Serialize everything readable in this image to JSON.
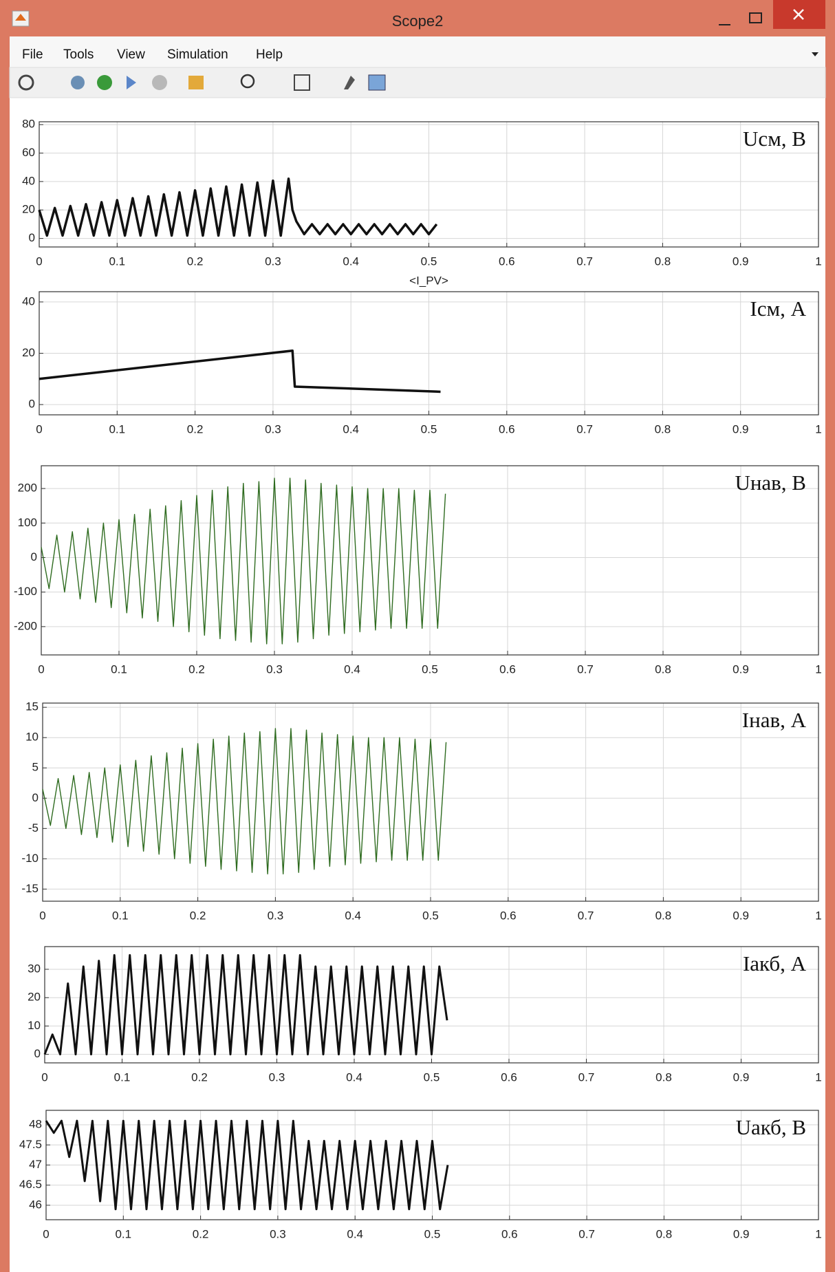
{
  "window": {
    "title": "Scope2",
    "menu": [
      "File",
      "Tools",
      "View",
      "Simulation",
      "Help"
    ]
  },
  "chart_data": [
    {
      "type": "line",
      "annotation": "Uсм, В",
      "color": "#111111",
      "grid": true,
      "xlim": [
        0,
        1
      ],
      "xticks": [
        0,
        0.1,
        0.2,
        0.3,
        0.4,
        0.5,
        0.6,
        0.7,
        0.8,
        0.9,
        1
      ],
      "ylim": [
        -6,
        82
      ],
      "yticks": [
        0,
        20,
        40,
        60,
        80
      ],
      "x": [
        0,
        0.01,
        0.02,
        0.03,
        0.04,
        0.05,
        0.06,
        0.07,
        0.08,
        0.09,
        0.1,
        0.11,
        0.12,
        0.13,
        0.14,
        0.15,
        0.16,
        0.17,
        0.18,
        0.19,
        0.2,
        0.21,
        0.22,
        0.23,
        0.24,
        0.25,
        0.26,
        0.27,
        0.28,
        0.29,
        0.3,
        0.31,
        0.32,
        0.325,
        0.33,
        0.34,
        0.35,
        0.36,
        0.37,
        0.38,
        0.39,
        0.4,
        0.41,
        0.42,
        0.43,
        0.44,
        0.45,
        0.46,
        0.47,
        0.48,
        0.49,
        0.5,
        0.51
      ],
      "values": [
        20,
        2,
        21.4,
        2,
        22.8,
        2,
        24.1,
        2,
        25.5,
        2,
        26.9,
        2,
        28.3,
        2,
        29.6,
        2,
        31,
        2,
        32.4,
        2,
        33.8,
        2,
        35.1,
        2,
        36.5,
        2,
        37.9,
        2,
        39.3,
        2,
        40.6,
        2,
        42,
        20,
        12,
        3,
        10,
        3,
        10,
        3,
        10,
        3,
        10,
        3,
        10,
        3,
        10,
        3,
        10,
        3,
        10,
        3,
        10
      ]
    },
    {
      "type": "line",
      "title": "<I_PV>",
      "annotation": "Iсм, А",
      "color": "#111111",
      "grid": true,
      "xlim": [
        0,
        1
      ],
      "xticks": [
        0,
        0.1,
        0.2,
        0.3,
        0.4,
        0.5,
        0.6,
        0.7,
        0.8,
        0.9,
        1
      ],
      "ylim": [
        -4,
        44
      ],
      "yticks": [
        0,
        20,
        40
      ],
      "x": [
        0,
        0.325,
        0.328,
        0.515
      ],
      "values": [
        10,
        21,
        7,
        5
      ]
    },
    {
      "type": "line",
      "annotation": "Uнав, В",
      "color": "#2e6b1f",
      "grid": true,
      "xlim": [
        0,
        1
      ],
      "xticks": [
        0,
        0.1,
        0.2,
        0.3,
        0.4,
        0.5,
        0.6,
        0.7,
        0.8,
        0.9,
        1
      ],
      "ylim": [
        -282,
        266
      ],
      "yticks": [
        -200,
        -100,
        0,
        100,
        200
      ],
      "x": [
        0,
        0.01,
        0.02,
        0.03,
        0.04,
        0.05,
        0.06,
        0.07,
        0.08,
        0.09,
        0.1,
        0.11,
        0.12,
        0.13,
        0.14,
        0.15,
        0.16,
        0.17,
        0.18,
        0.19,
        0.2,
        0.21,
        0.22,
        0.23,
        0.24,
        0.25,
        0.26,
        0.27,
        0.28,
        0.29,
        0.3,
        0.31,
        0.32,
        0.33,
        0.34,
        0.35,
        0.36,
        0.37,
        0.38,
        0.39,
        0.4,
        0.41,
        0.42,
        0.43,
        0.44,
        0.45,
        0.46,
        0.47,
        0.48,
        0.49,
        0.5,
        0.51,
        0.52
      ],
      "values": [
        30,
        -90,
        65,
        -100,
        75,
        -120,
        85,
        -130,
        100,
        -145,
        110,
        -160,
        125,
        -175,
        140,
        -185,
        150,
        -200,
        165,
        -215,
        180,
        -225,
        195,
        -235,
        205,
        -240,
        215,
        -245,
        220,
        -250,
        230,
        -250,
        230,
        -245,
        225,
        -235,
        215,
        -225,
        210,
        -220,
        205,
        -215,
        200,
        -210,
        200,
        -205,
        200,
        -205,
        195,
        -205,
        195,
        -205,
        185
      ]
    },
    {
      "type": "line",
      "annotation": "Iнав, А",
      "color": "#2e6b1f",
      "grid": true,
      "xlim": [
        0,
        1
      ],
      "xticks": [
        0,
        0.1,
        0.2,
        0.3,
        0.4,
        0.5,
        0.6,
        0.7,
        0.8,
        0.9,
        1
      ],
      "ylim": [
        -17,
        15.7
      ],
      "yticks": [
        -15,
        -10,
        -5,
        0,
        5,
        10,
        15
      ],
      "x": [
        0,
        0.01,
        0.02,
        0.03,
        0.04,
        0.05,
        0.06,
        0.07,
        0.08,
        0.09,
        0.1,
        0.11,
        0.12,
        0.13,
        0.14,
        0.15,
        0.16,
        0.17,
        0.18,
        0.19,
        0.2,
        0.21,
        0.22,
        0.23,
        0.24,
        0.25,
        0.26,
        0.27,
        0.28,
        0.29,
        0.3,
        0.31,
        0.32,
        0.33,
        0.34,
        0.35,
        0.36,
        0.37,
        0.38,
        0.39,
        0.4,
        0.41,
        0.42,
        0.43,
        0.44,
        0.45,
        0.46,
        0.47,
        0.48,
        0.49,
        0.5,
        0.51,
        0.52
      ],
      "values": [
        1.5,
        -4.5,
        3.25,
        -5,
        3.75,
        -6,
        4.25,
        -6.5,
        5,
        -7.25,
        5.5,
        -8,
        6.25,
        -8.75,
        7,
        -9.25,
        7.5,
        -10,
        8.25,
        -10.75,
        9,
        -11.25,
        9.75,
        -11.75,
        10.25,
        -12,
        10.75,
        -12.25,
        11,
        -12.5,
        11.5,
        -12.5,
        11.5,
        -12.25,
        11.25,
        -11.75,
        10.75,
        -11.25,
        10.5,
        -11,
        10.25,
        -10.75,
        10,
        -10.5,
        10,
        -10.25,
        10,
        -10.25,
        9.75,
        -10.25,
        9.75,
        -10.25,
        9.25
      ]
    },
    {
      "type": "line",
      "annotation": "Iакб, А",
      "color": "#111111",
      "grid": true,
      "xlim": [
        0,
        1
      ],
      "xticks": [
        0,
        0.1,
        0.2,
        0.3,
        0.4,
        0.5,
        0.6,
        0.7,
        0.8,
        0.9,
        1
      ],
      "ylim": [
        -3,
        38
      ],
      "yticks": [
        0,
        10,
        20,
        30
      ],
      "x": [
        0,
        0.01,
        0.02,
        0.03,
        0.04,
        0.05,
        0.06,
        0.07,
        0.08,
        0.09,
        0.1,
        0.11,
        0.12,
        0.13,
        0.14,
        0.15,
        0.16,
        0.17,
        0.18,
        0.19,
        0.2,
        0.21,
        0.22,
        0.23,
        0.24,
        0.25,
        0.26,
        0.27,
        0.28,
        0.29,
        0.3,
        0.31,
        0.32,
        0.33,
        0.34,
        0.35,
        0.36,
        0.37,
        0.38,
        0.39,
        0.4,
        0.41,
        0.42,
        0.43,
        0.44,
        0.45,
        0.46,
        0.47,
        0.48,
        0.49,
        0.5,
        0.51,
        0.52
      ],
      "values": [
        0,
        7,
        0,
        25,
        0,
        31,
        0,
        33,
        0,
        35,
        0,
        35,
        0,
        35,
        0,
        35,
        0,
        35,
        0,
        35,
        0,
        35,
        0,
        35,
        0,
        35,
        0,
        35,
        0,
        35,
        0,
        35,
        0,
        35,
        0,
        31,
        0,
        31,
        0,
        31,
        0,
        31,
        0,
        31,
        0,
        31,
        0,
        31,
        0,
        31,
        0,
        31,
        12
      ]
    },
    {
      "type": "line",
      "annotation": "Uакб, В",
      "color": "#111111",
      "grid": true,
      "xlim": [
        0,
        1
      ],
      "xticks": [
        0,
        0.1,
        0.2,
        0.3,
        0.4,
        0.5,
        0.6,
        0.7,
        0.8,
        0.9,
        1
      ],
      "ylim": [
        45.64,
        48.36
      ],
      "yticks": [
        46,
        46.5,
        47,
        47.5,
        48
      ],
      "x": [
        0,
        0.01,
        0.02,
        0.03,
        0.04,
        0.05,
        0.06,
        0.07,
        0.08,
        0.09,
        0.1,
        0.11,
        0.12,
        0.13,
        0.14,
        0.15,
        0.16,
        0.17,
        0.18,
        0.19,
        0.2,
        0.21,
        0.22,
        0.23,
        0.24,
        0.25,
        0.26,
        0.27,
        0.28,
        0.29,
        0.3,
        0.31,
        0.32,
        0.33,
        0.34,
        0.35,
        0.36,
        0.37,
        0.38,
        0.39,
        0.4,
        0.41,
        0.42,
        0.43,
        0.44,
        0.45,
        0.46,
        0.47,
        0.48,
        0.49,
        0.5,
        0.51,
        0.52
      ],
      "values": [
        48.1,
        47.8,
        48.1,
        47.2,
        48.1,
        46.6,
        48.1,
        46.1,
        48.1,
        45.9,
        48.1,
        45.9,
        48.1,
        45.9,
        48.1,
        45.9,
        48.1,
        45.9,
        48.1,
        45.9,
        48.1,
        45.9,
        48.1,
        45.9,
        48.1,
        45.9,
        48.1,
        45.9,
        48.1,
        45.9,
        48.1,
        45.9,
        48.1,
        45.9,
        47.6,
        45.9,
        47.6,
        45.9,
        47.6,
        45.9,
        47.6,
        45.9,
        47.6,
        45.9,
        47.6,
        45.9,
        47.6,
        45.9,
        47.6,
        45.9,
        47.6,
        45.9,
        47
      ]
    }
  ]
}
